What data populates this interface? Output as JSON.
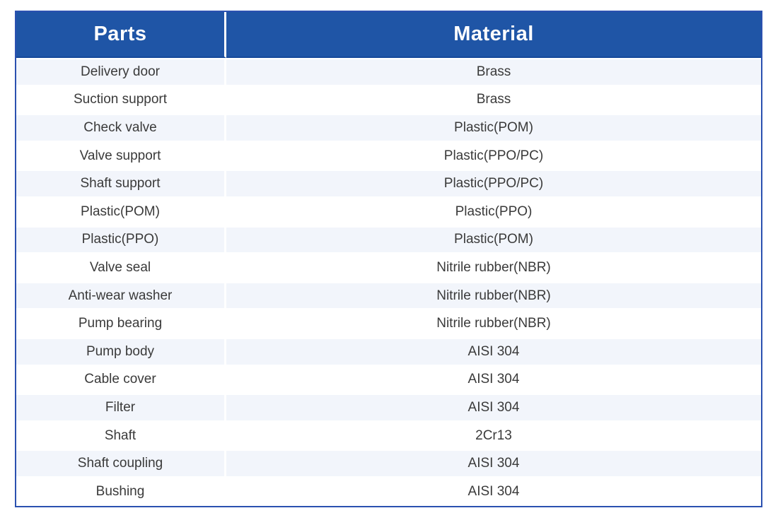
{
  "table": {
    "columns": [
      {
        "label": "Parts"
      },
      {
        "label": "Material"
      }
    ],
    "rows": [
      {
        "part": "Delivery door",
        "material": "Brass"
      },
      {
        "part": "Suction support",
        "material": "Brass"
      },
      {
        "part": "Check valve",
        "material": "Plastic(POM)"
      },
      {
        "part": "Valve support",
        "material": "Plastic(PPO/PC)"
      },
      {
        "part": "Shaft support",
        "material": "Plastic(PPO/PC)"
      },
      {
        "part": "Plastic(POM)",
        "material": "Plastic(PPO)"
      },
      {
        "part": "Plastic(PPO)",
        "material": "Plastic(POM)"
      },
      {
        "part": "Valve seal",
        "material": "Nitrile rubber(NBR)"
      },
      {
        "part": "Anti-wear washer",
        "material": "Nitrile rubber(NBR)"
      },
      {
        "part": "Pump bearing",
        "material": "Nitrile rubber(NBR)"
      },
      {
        "part": "Pump body",
        "material": "AISI 304"
      },
      {
        "part": "Cable cover",
        "material": "AISI 304"
      },
      {
        "part": "Filter",
        "material": "AISI 304"
      },
      {
        "part": "Shaft",
        "material": "2Cr13"
      },
      {
        "part": "Shaft coupling",
        "material": "AISI 304"
      },
      {
        "part": "Bushing",
        "material": "AISI 304"
      }
    ]
  },
  "colors": {
    "header_bg": "#1f55a6",
    "header_text": "#ffffff",
    "header_underline": "#16499a",
    "alt_row_bg": "#f2f5fb",
    "table_border": "#2b51b0",
    "body_text": "#3a3a3a"
  }
}
